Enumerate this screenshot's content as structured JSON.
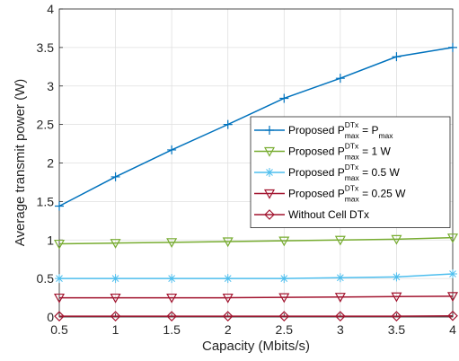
{
  "chart_data": {
    "type": "line",
    "title": "",
    "xlabel": "Capacity (Mbits/s)",
    "ylabel": "Average transmit power (W)",
    "xlim": [
      0.5,
      4
    ],
    "ylim": [
      0,
      4
    ],
    "xticks": [
      0.5,
      1,
      1.5,
      2,
      2.5,
      3,
      3.5,
      4
    ],
    "yticks": [
      0,
      0.5,
      1,
      1.5,
      2,
      2.5,
      3,
      3.5,
      4
    ],
    "xtick_labels": [
      "0.5",
      "1",
      "1.5",
      "2",
      "2.5",
      "3",
      "3.5",
      "4"
    ],
    "ytick_labels": [
      "0",
      "0.5",
      "1",
      "1.5",
      "2",
      "2.5",
      "3",
      "3.5",
      "4"
    ],
    "grid": true,
    "legend_position": "center-right",
    "x": [
      0.5,
      1,
      1.5,
      2,
      2.5,
      3,
      3.5,
      4
    ],
    "series": [
      {
        "legend": {
          "prefix": "Proposed P",
          "sup": "DTx",
          "sub": "max",
          "middle": " = P",
          "end_sub": "max",
          "suffix": ""
        },
        "marker": "plus",
        "color": "#0072bd",
        "values": [
          1.44,
          1.82,
          2.17,
          2.5,
          2.84,
          3.1,
          3.38,
          3.5
        ]
      },
      {
        "legend": {
          "prefix": "Proposed P",
          "sup": "DTx",
          "sub": "max",
          "middle": " = 1 W",
          "end_sub": "",
          "suffix": ""
        },
        "marker": "triangle-down",
        "color": "#77ac30",
        "values": [
          0.95,
          0.96,
          0.97,
          0.98,
          0.99,
          1.0,
          1.01,
          1.03
        ]
      },
      {
        "legend": {
          "prefix": "Proposed P",
          "sup": "DTx",
          "sub": "max",
          "middle": " = 0.5 W",
          "end_sub": "",
          "suffix": ""
        },
        "marker": "star",
        "color": "#4dbeee",
        "values": [
          0.5,
          0.5,
          0.5,
          0.5,
          0.5,
          0.51,
          0.52,
          0.56
        ]
      },
      {
        "legend": {
          "prefix": "Proposed P",
          "sup": "DTx",
          "sub": "max",
          "middle": " = 0.25 W",
          "end_sub": "",
          "suffix": ""
        },
        "marker": "triangle-down",
        "color": "#a2142f",
        "values": [
          0.25,
          0.25,
          0.25,
          0.25,
          0.255,
          0.26,
          0.265,
          0.27
        ]
      },
      {
        "legend": {
          "prefix": "Without Cell DTx",
          "sup": "",
          "sub": "",
          "middle": "",
          "end_sub": "",
          "suffix": ""
        },
        "marker": "diamond",
        "color": "#a2142f",
        "values": [
          0.01,
          0.01,
          0.01,
          0.01,
          0.01,
          0.01,
          0.01,
          0.015
        ]
      }
    ]
  }
}
